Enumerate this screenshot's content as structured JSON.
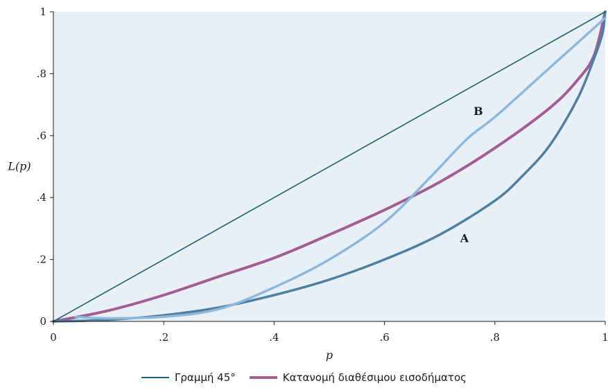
{
  "chart_data": {
    "type": "line",
    "xlabel": "p",
    "ylabel": "L(p)",
    "xlim": [
      0,
      1
    ],
    "ylim": [
      0,
      1
    ],
    "xticks": [
      "0",
      ".2",
      ".4",
      ".6",
      ".8",
      "1"
    ],
    "yticks": [
      "0",
      ".2",
      ".4",
      ".6",
      ".8",
      "1"
    ],
    "background": "#e8f0f6",
    "grid": false,
    "legend_position": "bottom",
    "series": [
      {
        "name": "Γραμμή 45°",
        "color": "#1f5f7a",
        "in_legend": true,
        "x": [
          0,
          1
        ],
        "y": [
          0,
          1
        ]
      },
      {
        "name": "Κατανομή διαθέσιμου εισοδήματος",
        "color": "#a25d92",
        "in_legend": true,
        "x": [
          0,
          0.1,
          0.2,
          0.3,
          0.4,
          0.5,
          0.6,
          0.7,
          0.8,
          0.9,
          0.95,
          0.98,
          1
        ],
        "y": [
          0,
          0.035,
          0.085,
          0.145,
          0.205,
          0.28,
          0.36,
          0.45,
          0.56,
          0.69,
          0.78,
          0.86,
          1
        ]
      },
      {
        "name": "A",
        "color": "#4e7fa3",
        "in_legend": false,
        "x": [
          0,
          0.1,
          0.2,
          0.3,
          0.4,
          0.5,
          0.6,
          0.7,
          0.8,
          0.85,
          0.9,
          0.95,
          0.98,
          0.995,
          1
        ],
        "y": [
          0,
          0.005,
          0.02,
          0.045,
          0.085,
          0.135,
          0.2,
          0.28,
          0.39,
          0.47,
          0.57,
          0.72,
          0.85,
          0.93,
          1
        ]
      },
      {
        "name": "B",
        "color": "#8db7db",
        "in_legend": false,
        "x": [
          0.04,
          0.1,
          0.2,
          0.3,
          0.4,
          0.5,
          0.6,
          0.68,
          0.75,
          0.8,
          0.9,
          1
        ],
        "y": [
          0.015,
          0.01,
          0.015,
          0.04,
          0.11,
          0.2,
          0.32,
          0.46,
          0.59,
          0.66,
          0.82,
          0.98
        ]
      }
    ],
    "annotations": [
      {
        "text": "B",
        "x": 0.77,
        "y": 0.68
      },
      {
        "text": "A",
        "x": 0.745,
        "y": 0.27
      }
    ]
  }
}
